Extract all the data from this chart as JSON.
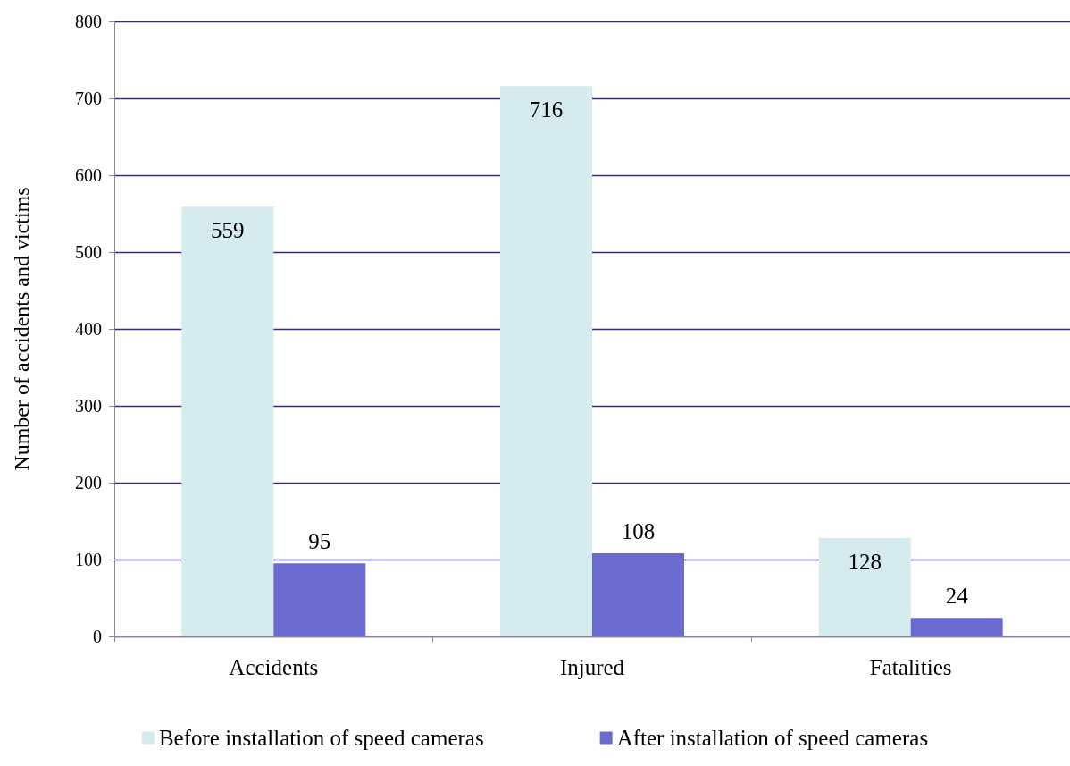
{
  "chart_data": {
    "type": "bar",
    "ylabel": "Number of accidents and victims",
    "categories": [
      "Accidents",
      "Injured",
      "Fatalities"
    ],
    "series": [
      {
        "name": "Before installation of speed cameras",
        "color": "#d6ebee",
        "values": [
          559,
          716,
          128
        ]
      },
      {
        "name": "After installation of speed cameras",
        "color": "#6b6bcf",
        "values": [
          95,
          108,
          24
        ]
      }
    ],
    "ylim": [
      0,
      800
    ],
    "yticks": [
      0,
      100,
      200,
      300,
      400,
      500,
      600,
      700,
      800
    ],
    "grid": "y",
    "legend": "bottom",
    "data_labels": true
  }
}
